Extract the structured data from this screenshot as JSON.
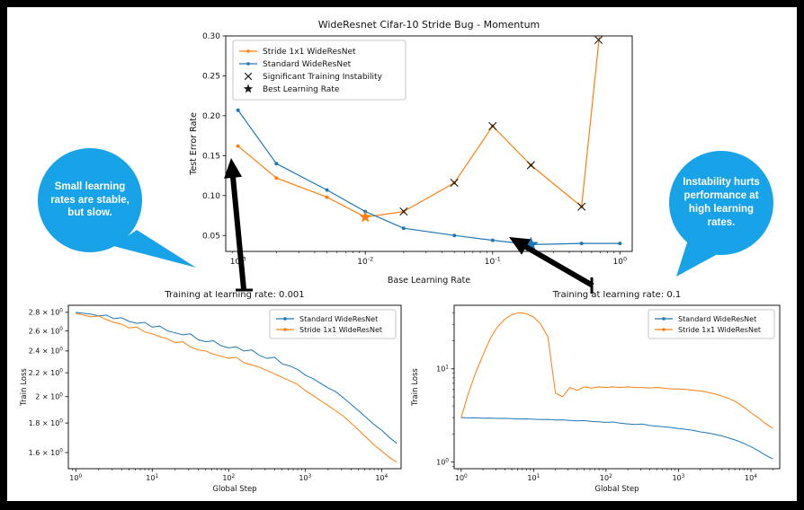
{
  "page": {
    "background": "#000000",
    "canvas": "#ffffff"
  },
  "colors": {
    "stride_orange": "#ff7f0e",
    "standard_blue": "#1f77b4",
    "marker_black": "#1a1a1a",
    "callout_fill": "#18a2e8",
    "callout_text": "#ffffff"
  },
  "callouts": {
    "left": {
      "text": "Small learning rates are stable, but slow."
    },
    "right": {
      "text": "Instability hurts performance at high learning rates."
    }
  },
  "chart_data": [
    {
      "id": "top",
      "type": "line",
      "title": "WideResnet Cifar-10 Stride Bug - Momentum",
      "xlabel": "Base Learning Rate",
      "ylabel": "Test Error Rate",
      "xscale": "log",
      "yscale": "linear",
      "xlim": [
        0.0008,
        1.25
      ],
      "ylim": [
        0.03,
        0.3
      ],
      "xticks": [
        0.001,
        0.01,
        0.1,
        1
      ],
      "xtick_style": "pow",
      "yticks": [
        0.05,
        0.1,
        0.15,
        0.2,
        0.25,
        0.3
      ],
      "ytick_style": "fixed2",
      "grid": false,
      "series": [
        {
          "name": "Stride 1x1 WideResNet",
          "color": "#ff7f0e",
          "marker": "dot",
          "x": [
            0.001,
            0.002,
            0.005,
            0.01,
            0.02,
            0.05,
            0.1,
            0.2,
            0.5,
            0.7
          ],
          "y": [
            0.162,
            0.122,
            0.098,
            0.073,
            0.08,
            0.116,
            0.187,
            0.138,
            0.086,
            0.31
          ]
        },
        {
          "name": "Standard WideResNet",
          "color": "#1f77b4",
          "marker": "dot",
          "x": [
            0.001,
            0.002,
            0.005,
            0.01,
            0.02,
            0.05,
            0.1,
            0.2,
            0.5,
            1.0
          ],
          "y": [
            0.207,
            0.14,
            0.107,
            0.08,
            0.059,
            0.05,
            0.044,
            0.0385,
            0.04,
            0.04
          ]
        }
      ],
      "instability_markers": {
        "label": "Significant Training Instability",
        "points": [
          [
            0.02,
            0.08
          ],
          [
            0.05,
            0.116
          ],
          [
            0.1,
            0.187
          ],
          [
            0.2,
            0.138
          ],
          [
            0.5,
            0.086
          ],
          [
            0.68,
            0.295
          ]
        ]
      },
      "best_markers": {
        "label": "Best Learning Rate",
        "points": [
          {
            "x": 0.01,
            "y": 0.073,
            "color": "#ff7f0e",
            "size": 7
          },
          {
            "x": 0.2,
            "y": 0.0385,
            "color": "#1f77b4",
            "size": 9
          }
        ]
      },
      "legend": {
        "position": "top-left",
        "entries": [
          {
            "label": "Stride 1x1 WideResNet",
            "type": "line",
            "color": "#ff7f0e"
          },
          {
            "label": "Standard WideResNet",
            "type": "line",
            "color": "#1f77b4"
          },
          {
            "label": "Significant Training Instability",
            "type": "x",
            "color": "#1a1a1a"
          },
          {
            "label": "Best Learning Rate",
            "type": "star",
            "color": "#1a1a1a"
          }
        ]
      }
    },
    {
      "id": "bottom-left",
      "type": "line",
      "title": "Training at learning rate: 0.001",
      "xlabel": "Global Step",
      "ylabel": "Train Loss",
      "xscale": "log",
      "yscale": "log",
      "xlim": [
        0.8,
        18000
      ],
      "ylim": [
        1.5,
        2.88
      ],
      "xticks": [
        1,
        10,
        100,
        1000,
        10000
      ],
      "xtick_style": "pow",
      "yticks": [
        1.6,
        1.8,
        2.0,
        2.2,
        2.4,
        2.6,
        2.8
      ],
      "ytick_style": "sci0",
      "grid": false,
      "x": [
        1,
        1.26,
        1.58,
        2,
        2.51,
        3.16,
        3.98,
        5.01,
        6.31,
        7.94,
        10,
        12.6,
        15.8,
        20,
        25.1,
        31.6,
        39.8,
        50.1,
        63.1,
        79.4,
        100,
        126,
        158,
        200,
        251,
        316,
        398,
        501,
        631,
        794,
        1000,
        1260,
        1580,
        2000,
        2510,
        3160,
        3980,
        5010,
        6310,
        7940,
        10000,
        12600,
        15800
      ],
      "series": [
        {
          "name": "Standard WideResNet",
          "color": "#1f77b4",
          "y": [
            2.8,
            2.79,
            2.78,
            2.76,
            2.77,
            2.73,
            2.74,
            2.7,
            2.68,
            2.69,
            2.64,
            2.65,
            2.6,
            2.58,
            2.56,
            2.57,
            2.51,
            2.49,
            2.5,
            2.45,
            2.43,
            2.44,
            2.4,
            2.41,
            2.36,
            2.33,
            2.34,
            2.28,
            2.26,
            2.23,
            2.18,
            2.15,
            2.11,
            2.07,
            2.04,
            1.99,
            1.94,
            1.89,
            1.84,
            1.79,
            1.75,
            1.7,
            1.66
          ]
        },
        {
          "name": "Stride 1x1 WideResNet",
          "color": "#ff7f0e",
          "y": [
            2.79,
            2.77,
            2.75,
            2.76,
            2.72,
            2.69,
            2.67,
            2.63,
            2.64,
            2.59,
            2.57,
            2.54,
            2.52,
            2.48,
            2.49,
            2.44,
            2.41,
            2.4,
            2.37,
            2.35,
            2.33,
            2.34,
            2.29,
            2.27,
            2.25,
            2.22,
            2.19,
            2.16,
            2.13,
            2.1,
            2.05,
            2.01,
            1.97,
            1.93,
            1.89,
            1.85,
            1.8,
            1.75,
            1.7,
            1.65,
            1.61,
            1.57,
            1.54
          ]
        }
      ],
      "legend": {
        "position": "top-right",
        "entries": [
          {
            "label": "Standard WideResNet",
            "type": "line",
            "color": "#1f77b4"
          },
          {
            "label": "Stride 1x1 WideResNet",
            "type": "line",
            "color": "#ff7f0e"
          }
        ]
      }
    },
    {
      "id": "bottom-right",
      "type": "line",
      "title": "Training at learning rate: 0.1",
      "xlabel": "Global Step",
      "ylabel": "Train Loss",
      "xscale": "log",
      "yscale": "log",
      "xlim": [
        0.8,
        25000
      ],
      "ylim": [
        0.85,
        48
      ],
      "xticks": [
        1,
        10,
        100,
        1000,
        10000
      ],
      "xtick_style": "pow",
      "yticks": [
        1,
        10
      ],
      "ytick_style": "pow",
      "grid": false,
      "x": [
        1,
        1.26,
        1.58,
        2,
        2.51,
        3.16,
        3.98,
        5.01,
        6.31,
        7.94,
        10,
        12.6,
        15.8,
        20,
        25.1,
        31.6,
        39.8,
        50.1,
        63.1,
        79.4,
        100,
        126,
        158,
        200,
        251,
        316,
        398,
        501,
        631,
        794,
        1000,
        1260,
        1580,
        2000,
        2510,
        3160,
        3980,
        5010,
        6310,
        7940,
        10000,
        12600,
        15800,
        20000
      ],
      "series": [
        {
          "name": "Standard WideResNet",
          "color": "#1f77b4",
          "y": [
            3.0,
            2.98,
            2.99,
            2.96,
            2.97,
            2.94,
            2.95,
            2.92,
            2.9,
            2.91,
            2.88,
            2.86,
            2.87,
            2.83,
            2.84,
            2.8,
            2.77,
            2.79,
            2.73,
            2.71,
            2.67,
            2.69,
            2.61,
            2.57,
            2.53,
            2.56,
            2.47,
            2.43,
            2.39,
            2.35,
            2.29,
            2.25,
            2.19,
            2.11,
            2.06,
            1.99,
            1.91,
            1.81,
            1.71,
            1.59,
            1.46,
            1.33,
            1.19,
            1.08
          ]
        },
        {
          "name": "Stride 1x1 WideResNet",
          "color": "#ff7f0e",
          "y": [
            3.0,
            5.5,
            9.0,
            14,
            21,
            28,
            34,
            38,
            40,
            39,
            36,
            30,
            22,
            5.5,
            5.0,
            6.3,
            5.9,
            6.4,
            6.2,
            6.4,
            6.3,
            6.4,
            6.3,
            6.4,
            6.3,
            6.3,
            6.2,
            6.3,
            6.2,
            6.1,
            6.1,
            6.0,
            5.9,
            5.8,
            5.6,
            5.4,
            5.1,
            4.8,
            4.4,
            3.9,
            3.4,
            3.0,
            2.6,
            2.3
          ]
        }
      ],
      "legend": {
        "position": "top-right",
        "entries": [
          {
            "label": "Standard WideResNet",
            "type": "line",
            "color": "#1f77b4"
          },
          {
            "label": "Stride 1x1 WideResNet",
            "type": "line",
            "color": "#ff7f0e"
          }
        ]
      }
    }
  ]
}
